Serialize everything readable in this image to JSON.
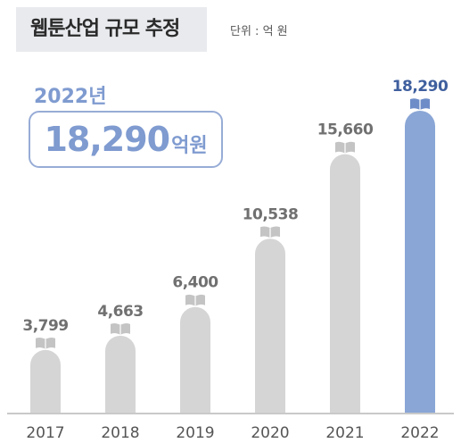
{
  "header": {
    "title": "웹툰산업 규모 추정",
    "unit": "단위 : 억 원"
  },
  "highlight": {
    "year": "2022년",
    "value": "18,290",
    "unit": "억원"
  },
  "colors": {
    "bar_default": "#d5d5d5",
    "bar_highlight": "#8aa6d6",
    "label_default": "#707070",
    "label_highlight": "#3f5f9e",
    "accent": "#7f9bd0"
  },
  "icon": "book-icon",
  "chart_data": {
    "type": "bar",
    "categories": [
      "2017",
      "2018",
      "2019",
      "2020",
      "2021",
      "2022"
    ],
    "values": [
      3799,
      4663,
      6400,
      10538,
      15660,
      18290
    ],
    "value_labels": [
      "3,799",
      "4,663",
      "6,400",
      "10,538",
      "15,660",
      "18,290"
    ],
    "highlight_index": 5,
    "title": "웹툰산업 규모 추정",
    "ylabel": "단위 : 억 원",
    "grid": false
  }
}
